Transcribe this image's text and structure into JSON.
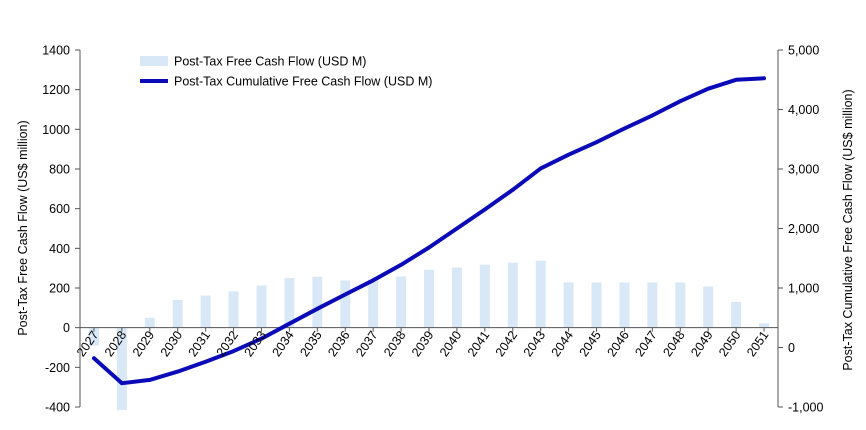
{
  "chart_data": {
    "type": "bar",
    "categories": [
      "2027",
      "2028",
      "2029",
      "2030",
      "2031",
      "2032",
      "2033",
      "2034",
      "2035",
      "2036",
      "2037",
      "2038",
      "2039",
      "2040",
      "2041",
      "2042",
      "2043",
      "2044",
      "2045",
      "2046",
      "2047",
      "2048",
      "2049",
      "2050",
      "2051"
    ],
    "series": [
      {
        "name": "Post-Tax Free Cash Flow (USD M)",
        "type": "bar",
        "axis": "left",
        "color": "#d9e8f6",
        "values": [
          -90,
          -415,
          50,
          140,
          162,
          183,
          213,
          250,
          257,
          238,
          243,
          258,
          292,
          303,
          318,
          328,
          338,
          228,
          228,
          228,
          228,
          228,
          208,
          130,
          22
        ]
      },
      {
        "name": "Post-Tax Cumulative Free Cash Flow (USD M)",
        "type": "line",
        "axis": "right",
        "color": "#0a0ab8",
        "values": [
          -180,
          -600,
          -545,
          -405,
          -240,
          -60,
          150,
          400,
          650,
          890,
          1130,
          1390,
          1680,
          2000,
          2320,
          2650,
          3010,
          3240,
          3450,
          3680,
          3900,
          4140,
          4350,
          4500,
          4525
        ]
      }
    ],
    "y_left": {
      "label": "Post-Tax Free Cash Flow (US$ million)",
      "range": [
        -400,
        1400
      ],
      "ticks": [
        "-400",
        "-200",
        "0",
        "200",
        "400",
        "600",
        "800",
        "1000",
        "1200",
        "1400"
      ]
    },
    "y_right": {
      "label": "Post-Tax Cumulative  Free Cash Flow (US$ million)",
      "range": [
        -1000,
        5000
      ],
      "ticks": [
        "-1,000",
        "0",
        "1,000",
        "2,000",
        "3,000",
        "4,000",
        "5,000"
      ]
    },
    "grid": false,
    "legend": "top-left"
  }
}
